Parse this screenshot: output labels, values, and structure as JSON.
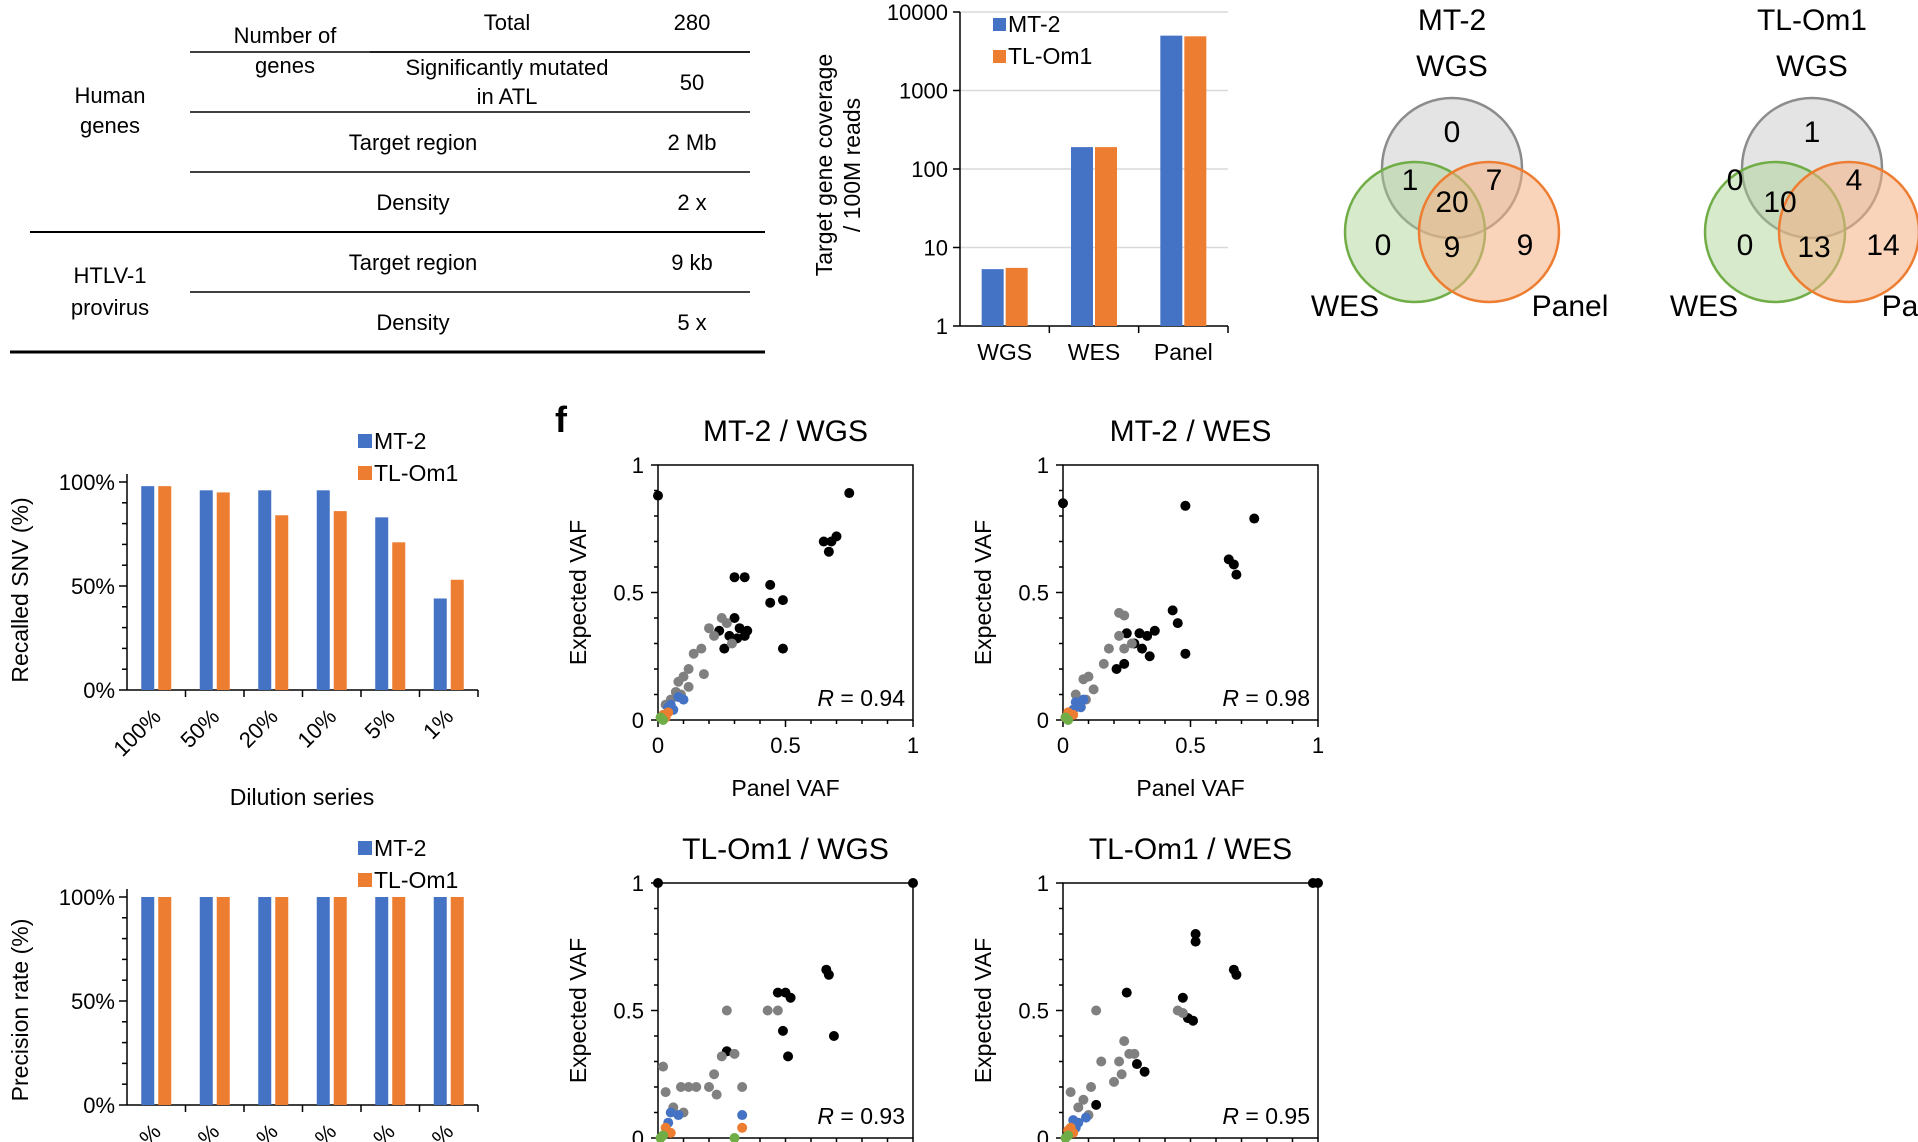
{
  "table": {
    "rows": [
      {
        "group": "Human genes",
        "sub": "Number of genes",
        "label": "Total",
        "value": "280"
      },
      {
        "label": "Significantly mutated in ATL",
        "value": "50"
      },
      {
        "label": "Target region",
        "value": "2 Mb"
      },
      {
        "label": "Density",
        "value": "2 x"
      },
      {
        "group": "HTLV-1 provirus",
        "label": "Target region",
        "value": "9 kb"
      },
      {
        "label": "Density",
        "value": "5 x"
      }
    ],
    "group_human_1": "Human",
    "group_human_2": "genes",
    "group_htlv_1": "HTLV-1",
    "group_htlv_2": "provirus",
    "sub_1": "Number of",
    "sub_2": "genes",
    "sig_1": "Significantly mutated",
    "sig_2": "in ATL"
  },
  "venn": [
    {
      "title_1": "MT-2",
      "title_2": "WGS",
      "left": "WES",
      "right": "Panel",
      "regions": {
        "wgs_only": "0",
        "wgs_wes": "1",
        "wgs_panel": "7",
        "all": "20",
        "wes_panel": "9",
        "wes_only": "0",
        "panel_only": "9"
      }
    },
    {
      "title_1": "TL-Om1",
      "title_2": "WGS",
      "left": "WES",
      "right": "Pa",
      "regions": {
        "wgs_only": "1",
        "wgs_wes": "0",
        "wgs_panel": "4",
        "all": "10",
        "wes_panel": "13",
        "wes_only": "0",
        "panel_only": "14"
      }
    }
  ],
  "panel_label_f": "f",
  "colors": {
    "mt2": "#4472C4",
    "tlom1": "#ED7D31",
    "gray": "#808080",
    "green": "#70AD47",
    "black": "#000000"
  },
  "chart_data": [
    {
      "type": "bar",
      "scale": "log",
      "ylabel_1": "Target gene coverage",
      "ylabel_2": "/ 100M reads",
      "categories": [
        "WGS",
        "WES",
        "Panel"
      ],
      "ylim": [
        1,
        10000
      ],
      "yticks": [
        "1",
        "10",
        "100",
        "1000",
        "10000"
      ],
      "legend": "top-left",
      "series": [
        {
          "name": "MT-2",
          "values": [
            5.3,
            190,
            5000
          ]
        },
        {
          "name": "TL-Om1",
          "values": [
            5.5,
            190,
            4900
          ]
        }
      ]
    },
    {
      "type": "bar",
      "ylabel": "Recalled SNV (%)",
      "xlabel": "Dilution series",
      "categories": [
        "100%",
        "50%",
        "20%",
        "10%",
        "5%",
        "1%"
      ],
      "ylim": [
        0,
        100
      ],
      "yticks": [
        "0%",
        "50%",
        "100%"
      ],
      "legend": "top-right",
      "series": [
        {
          "name": "MT-2",
          "values": [
            98,
            96,
            96,
            96,
            83,
            44
          ]
        },
        {
          "name": "TL-Om1",
          "values": [
            98,
            95,
            84,
            86,
            71,
            53
          ]
        }
      ]
    },
    {
      "type": "bar",
      "ylabel": "Precision rate (%)",
      "categories": [
        "%",
        "%",
        "%",
        "%",
        "%",
        "%"
      ],
      "ylim": [
        0,
        100
      ],
      "yticks": [
        "0%",
        "50%",
        "100%"
      ],
      "legend": "top-right",
      "series": [
        {
          "name": "MT-2",
          "values": [
            100,
            100,
            100,
            100,
            100,
            100
          ]
        },
        {
          "name": "TL-Om1",
          "values": [
            100,
            100,
            100,
            100,
            100,
            100
          ]
        }
      ]
    },
    {
      "type": "scatter",
      "title": "MT-2 / WGS",
      "xlabel": "Panel VAF",
      "ylabel": "Expected VAF",
      "r_label": "R",
      "r_value": " = 0.94",
      "xlim": [
        0,
        1
      ],
      "ylim": [
        0,
        1
      ],
      "xticks": [
        "0",
        "0.5",
        "1"
      ],
      "yticks": [
        "0",
        "0.5",
        "1"
      ],
      "points": [
        {
          "c": "black",
          "x": 0.0,
          "y": 0.88
        },
        {
          "c": "black",
          "x": 0.75,
          "y": 0.89
        },
        {
          "c": "black",
          "x": 0.68,
          "y": 0.7
        },
        {
          "c": "black",
          "x": 0.65,
          "y": 0.7
        },
        {
          "c": "black",
          "x": 0.67,
          "y": 0.66
        },
        {
          "c": "black",
          "x": 0.7,
          "y": 0.72
        },
        {
          "c": "black",
          "x": 0.3,
          "y": 0.56
        },
        {
          "c": "black",
          "x": 0.34,
          "y": 0.56
        },
        {
          "c": "black",
          "x": 0.44,
          "y": 0.53
        },
        {
          "c": "black",
          "x": 0.44,
          "y": 0.46
        },
        {
          "c": "black",
          "x": 0.49,
          "y": 0.47
        },
        {
          "c": "black",
          "x": 0.49,
          "y": 0.28
        },
        {
          "c": "black",
          "x": 0.3,
          "y": 0.4
        },
        {
          "c": "black",
          "x": 0.32,
          "y": 0.36
        },
        {
          "c": "black",
          "x": 0.35,
          "y": 0.35
        },
        {
          "c": "black",
          "x": 0.28,
          "y": 0.33
        },
        {
          "c": "black",
          "x": 0.31,
          "y": 0.32
        },
        {
          "c": "black",
          "x": 0.34,
          "y": 0.33
        },
        {
          "c": "black",
          "x": 0.24,
          "y": 0.35
        },
        {
          "c": "black",
          "x": 0.26,
          "y": 0.28
        },
        {
          "c": "gray",
          "x": 0.25,
          "y": 0.4
        },
        {
          "c": "gray",
          "x": 0.2,
          "y": 0.36
        },
        {
          "c": "gray",
          "x": 0.22,
          "y": 0.33
        },
        {
          "c": "gray",
          "x": 0.29,
          "y": 0.3
        },
        {
          "c": "gray",
          "x": 0.27,
          "y": 0.38
        },
        {
          "c": "gray",
          "x": 0.17,
          "y": 0.28
        },
        {
          "c": "gray",
          "x": 0.14,
          "y": 0.26
        },
        {
          "c": "gray",
          "x": 0.18,
          "y": 0.18
        },
        {
          "c": "gray",
          "x": 0.12,
          "y": 0.2
        },
        {
          "c": "gray",
          "x": 0.1,
          "y": 0.17
        },
        {
          "c": "gray",
          "x": 0.08,
          "y": 0.15
        },
        {
          "c": "gray",
          "x": 0.07,
          "y": 0.11
        },
        {
          "c": "gray",
          "x": 0.12,
          "y": 0.13
        },
        {
          "c": "gray",
          "x": 0.05,
          "y": 0.08
        },
        {
          "c": "gray",
          "x": 0.03,
          "y": 0.06
        },
        {
          "c": "gray",
          "x": 0.09,
          "y": 0.1
        },
        {
          "c": "blue",
          "x": 0.05,
          "y": 0.06
        },
        {
          "c": "blue",
          "x": 0.08,
          "y": 0.09
        },
        {
          "c": "blue",
          "x": 0.06,
          "y": 0.04
        },
        {
          "c": "blue",
          "x": 0.04,
          "y": 0.05
        },
        {
          "c": "blue",
          "x": 0.1,
          "y": 0.08
        },
        {
          "c": "orange",
          "x": 0.02,
          "y": 0.02
        },
        {
          "c": "orange",
          "x": 0.04,
          "y": 0.03
        },
        {
          "c": "orange",
          "x": 0.03,
          "y": 0.01
        },
        {
          "c": "green",
          "x": 0.01,
          "y": 0.01
        },
        {
          "c": "green",
          "x": 0.02,
          "y": 0.0
        }
      ]
    },
    {
      "type": "scatter",
      "title": "MT-2 / WES",
      "xlabel": "Panel VAF",
      "ylabel": "Expected VAF",
      "r_label": "R",
      "r_value": " = 0.98",
      "xlim": [
        0,
        1
      ],
      "ylim": [
        0,
        1
      ],
      "xticks": [
        "0",
        "0.5",
        "1"
      ],
      "yticks": [
        "0",
        "0.5",
        "1"
      ],
      "points": [
        {
          "c": "black",
          "x": 0.0,
          "y": 0.85
        },
        {
          "c": "black",
          "x": 0.48,
          "y": 0.84
        },
        {
          "c": "black",
          "x": 0.75,
          "y": 0.79
        },
        {
          "c": "black",
          "x": 0.65,
          "y": 0.63
        },
        {
          "c": "black",
          "x": 0.67,
          "y": 0.61
        },
        {
          "c": "black",
          "x": 0.68,
          "y": 0.57
        },
        {
          "c": "black",
          "x": 0.43,
          "y": 0.43
        },
        {
          "c": "black",
          "x": 0.45,
          "y": 0.38
        },
        {
          "c": "black",
          "x": 0.48,
          "y": 0.26
        },
        {
          "c": "black",
          "x": 0.3,
          "y": 0.34
        },
        {
          "c": "black",
          "x": 0.33,
          "y": 0.33
        },
        {
          "c": "black",
          "x": 0.36,
          "y": 0.35
        },
        {
          "c": "black",
          "x": 0.28,
          "y": 0.3
        },
        {
          "c": "black",
          "x": 0.31,
          "y": 0.28
        },
        {
          "c": "black",
          "x": 0.34,
          "y": 0.25
        },
        {
          "c": "black",
          "x": 0.25,
          "y": 0.34
        },
        {
          "c": "black",
          "x": 0.21,
          "y": 0.2
        },
        {
          "c": "black",
          "x": 0.24,
          "y": 0.22
        },
        {
          "c": "gray",
          "x": 0.22,
          "y": 0.42
        },
        {
          "c": "gray",
          "x": 0.24,
          "y": 0.41
        },
        {
          "c": "gray",
          "x": 0.22,
          "y": 0.33
        },
        {
          "c": "gray",
          "x": 0.24,
          "y": 0.28
        },
        {
          "c": "gray",
          "x": 0.27,
          "y": 0.3
        },
        {
          "c": "gray",
          "x": 0.18,
          "y": 0.28
        },
        {
          "c": "gray",
          "x": 0.16,
          "y": 0.22
        },
        {
          "c": "gray",
          "x": 0.1,
          "y": 0.17
        },
        {
          "c": "gray",
          "x": 0.08,
          "y": 0.16
        },
        {
          "c": "gray",
          "x": 0.12,
          "y": 0.12
        },
        {
          "c": "gray",
          "x": 0.09,
          "y": 0.08
        },
        {
          "c": "gray",
          "x": 0.06,
          "y": 0.07
        },
        {
          "c": "gray",
          "x": 0.05,
          "y": 0.1
        },
        {
          "c": "blue",
          "x": 0.05,
          "y": 0.07
        },
        {
          "c": "blue",
          "x": 0.07,
          "y": 0.05
        },
        {
          "c": "blue",
          "x": 0.04,
          "y": 0.04
        },
        {
          "c": "blue",
          "x": 0.08,
          "y": 0.08
        },
        {
          "c": "orange",
          "x": 0.02,
          "y": 0.03
        },
        {
          "c": "orange",
          "x": 0.04,
          "y": 0.02
        },
        {
          "c": "orange",
          "x": 0.01,
          "y": 0.01
        },
        {
          "c": "green",
          "x": 0.01,
          "y": 0.01
        },
        {
          "c": "green",
          "x": 0.02,
          "y": 0.0
        }
      ]
    },
    {
      "type": "scatter",
      "title": "TL-Om1 / WGS",
      "ylabel": "Expected VAF",
      "r_label": "R",
      "r_value": " = 0.93",
      "xlim": [
        0,
        1
      ],
      "ylim": [
        0,
        1
      ],
      "yticks": [
        "0",
        "0.5",
        "1"
      ],
      "points": [
        {
          "c": "black",
          "x": 0.0,
          "y": 1.0
        },
        {
          "c": "black",
          "x": 1.0,
          "y": 1.0
        },
        {
          "c": "black",
          "x": 0.66,
          "y": 0.66
        },
        {
          "c": "black",
          "x": 0.67,
          "y": 0.64
        },
        {
          "c": "black",
          "x": 0.69,
          "y": 0.4
        },
        {
          "c": "black",
          "x": 0.47,
          "y": 0.57
        },
        {
          "c": "black",
          "x": 0.5,
          "y": 0.57
        },
        {
          "c": "black",
          "x": 0.52,
          "y": 0.55
        },
        {
          "c": "black",
          "x": 0.49,
          "y": 0.42
        },
        {
          "c": "black",
          "x": 0.51,
          "y": 0.32
        },
        {
          "c": "black",
          "x": 0.27,
          "y": 0.34
        },
        {
          "c": "gray",
          "x": 0.43,
          "y": 0.5
        },
        {
          "c": "gray",
          "x": 0.47,
          "y": 0.5
        },
        {
          "c": "gray",
          "x": 0.27,
          "y": 0.5
        },
        {
          "c": "gray",
          "x": 0.3,
          "y": 0.33
        },
        {
          "c": "gray",
          "x": 0.25,
          "y": 0.32
        },
        {
          "c": "gray",
          "x": 0.22,
          "y": 0.25
        },
        {
          "c": "gray",
          "x": 0.2,
          "y": 0.2
        },
        {
          "c": "gray",
          "x": 0.23,
          "y": 0.17
        },
        {
          "c": "gray",
          "x": 0.15,
          "y": 0.2
        },
        {
          "c": "gray",
          "x": 0.12,
          "y": 0.2
        },
        {
          "c": "gray",
          "x": 0.09,
          "y": 0.2
        },
        {
          "c": "gray",
          "x": 0.02,
          "y": 0.28
        },
        {
          "c": "gray",
          "x": 0.06,
          "y": 0.12
        },
        {
          "c": "gray",
          "x": 0.1,
          "y": 0.1
        },
        {
          "c": "gray",
          "x": 0.33,
          "y": 0.2
        },
        {
          "c": "gray",
          "x": 0.03,
          "y": 0.18
        },
        {
          "c": "blue",
          "x": 0.05,
          "y": 0.1
        },
        {
          "c": "blue",
          "x": 0.08,
          "y": 0.09
        },
        {
          "c": "blue",
          "x": 0.04,
          "y": 0.06
        },
        {
          "c": "blue",
          "x": 0.33,
          "y": 0.09
        },
        {
          "c": "orange",
          "x": 0.03,
          "y": 0.04
        },
        {
          "c": "orange",
          "x": 0.05,
          "y": 0.02
        },
        {
          "c": "orange",
          "x": 0.33,
          "y": 0.04
        },
        {
          "c": "green",
          "x": 0.01,
          "y": 0.0
        },
        {
          "c": "green",
          "x": 0.02,
          "y": 0.01
        },
        {
          "c": "green",
          "x": 0.3,
          "y": 0.0
        }
      ]
    },
    {
      "type": "scatter",
      "title": "TL-Om1 / WES",
      "ylabel": "Expected VAF",
      "r_label": "R",
      "r_value": " = 0.95",
      "xlim": [
        0,
        1
      ],
      "ylim": [
        0,
        1
      ],
      "yticks": [
        "0",
        "0.5",
        "1"
      ],
      "points": [
        {
          "c": "black",
          "x": 1.0,
          "y": 1.0
        },
        {
          "c": "black",
          "x": 0.98,
          "y": 1.0
        },
        {
          "c": "black",
          "x": 0.52,
          "y": 0.8
        },
        {
          "c": "black",
          "x": 0.52,
          "y": 0.77
        },
        {
          "c": "black",
          "x": 0.67,
          "y": 0.66
        },
        {
          "c": "black",
          "x": 0.68,
          "y": 0.64
        },
        {
          "c": "black",
          "x": 0.47,
          "y": 0.55
        },
        {
          "c": "black",
          "x": 0.49,
          "y": 0.47
        },
        {
          "c": "black",
          "x": 0.51,
          "y": 0.46
        },
        {
          "c": "black",
          "x": 0.25,
          "y": 0.57
        },
        {
          "c": "black",
          "x": 0.29,
          "y": 0.29
        },
        {
          "c": "black",
          "x": 0.32,
          "y": 0.26
        },
        {
          "c": "black",
          "x": 0.13,
          "y": 0.13
        },
        {
          "c": "gray",
          "x": 0.45,
          "y": 0.5
        },
        {
          "c": "gray",
          "x": 0.47,
          "y": 0.49
        },
        {
          "c": "gray",
          "x": 0.13,
          "y": 0.5
        },
        {
          "c": "gray",
          "x": 0.24,
          "y": 0.38
        },
        {
          "c": "gray",
          "x": 0.26,
          "y": 0.33
        },
        {
          "c": "gray",
          "x": 0.28,
          "y": 0.33
        },
        {
          "c": "gray",
          "x": 0.22,
          "y": 0.3
        },
        {
          "c": "gray",
          "x": 0.23,
          "y": 0.25
        },
        {
          "c": "gray",
          "x": 0.2,
          "y": 0.22
        },
        {
          "c": "gray",
          "x": 0.15,
          "y": 0.3
        },
        {
          "c": "gray",
          "x": 0.11,
          "y": 0.2
        },
        {
          "c": "gray",
          "x": 0.08,
          "y": 0.15
        },
        {
          "c": "gray",
          "x": 0.03,
          "y": 0.18
        },
        {
          "c": "gray",
          "x": 0.06,
          "y": 0.12
        },
        {
          "c": "gray",
          "x": 0.1,
          "y": 0.09
        },
        {
          "c": "blue",
          "x": 0.04,
          "y": 0.07
        },
        {
          "c": "blue",
          "x": 0.06,
          "y": 0.06
        },
        {
          "c": "blue",
          "x": 0.05,
          "y": 0.04
        },
        {
          "c": "blue",
          "x": 0.09,
          "y": 0.08
        },
        {
          "c": "orange",
          "x": 0.03,
          "y": 0.04
        },
        {
          "c": "orange",
          "x": 0.04,
          "y": 0.02
        },
        {
          "c": "orange",
          "x": 0.02,
          "y": 0.03
        },
        {
          "c": "green",
          "x": 0.01,
          "y": 0.0
        },
        {
          "c": "green",
          "x": 0.02,
          "y": 0.01
        }
      ]
    }
  ]
}
